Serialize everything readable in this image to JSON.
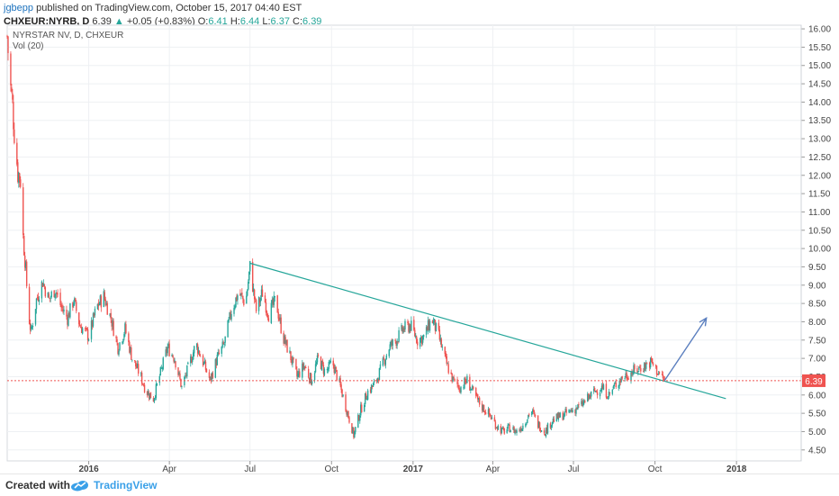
{
  "header": {
    "author": "jgbepp",
    "published_text": "published on TradingView.com, October 15, 2017 04:40 EST",
    "symbol": "CHXEUR:NYRB, D",
    "last": "6.39",
    "change": "+0.05 (+0.83%)",
    "o_label": "O:",
    "o_value": "6.41",
    "h_label": "H:",
    "h_value": "6.44",
    "l_label": "L:",
    "l_value": "6.37",
    "c_label": "C:",
    "c_value": "6.39"
  },
  "legend": {
    "series_name": "NYRSTAR NV, D, CHXEUR",
    "volume": "Vol (20)"
  },
  "footer": {
    "created_with": "Created with",
    "brand": "TradingView"
  },
  "colors": {
    "up": "#26a69a",
    "down": "#ef5350",
    "trendline": "#26a69a",
    "arrow": "#5b7fbf",
    "price_line": "#ef5350",
    "grid": "#eef0f3"
  },
  "chart_data": {
    "type": "candlestick",
    "y_axis": {
      "ticks": [
        "4.50",
        "5.00",
        "5.50",
        "6.00",
        "6.50",
        "7.00",
        "7.50",
        "8.00",
        "8.50",
        "9.00",
        "9.50",
        "10.00",
        "10.50",
        "11.00",
        "11.50",
        "12.00",
        "12.50",
        "13.00",
        "13.50",
        "14.00",
        "14.50",
        "15.00",
        "15.50",
        "16.00"
      ],
      "range": [
        4.2,
        16.1
      ]
    },
    "x_axis": {
      "ticks": [
        "2016",
        "Apr",
        "Jul",
        "Oct",
        "2017",
        "Apr",
        "Jul",
        "Oct",
        "2018"
      ],
      "range": [
        "2015-10-01",
        "2018-03-15"
      ]
    },
    "last_price_label": "6.39",
    "last_price": 6.39,
    "trendline": {
      "from": {
        "x": "2016-07-01",
        "y": 9.6
      },
      "to": {
        "x": "2017-12-20",
        "y": 5.9
      }
    },
    "projection_arrow": {
      "from": {
        "x": "2017-10-12",
        "y": 6.4
      },
      "to": {
        "x": "2017-11-28",
        "y": 8.1
      }
    },
    "price_path": [
      [
        "2015-10-01",
        15.8
      ],
      [
        "2015-10-04",
        14.6
      ],
      [
        "2015-10-07",
        13.9
      ],
      [
        "2015-10-10",
        12.9
      ],
      [
        "2015-10-13",
        12.1
      ],
      [
        "2015-10-16",
        11.9
      ],
      [
        "2015-10-19",
        10.3
      ],
      [
        "2015-10-22",
        9.4
      ],
      [
        "2015-10-25",
        8.2
      ],
      [
        "2015-10-28",
        7.7
      ],
      [
        "2015-11-03",
        8.6
      ],
      [
        "2015-11-10",
        9.1
      ],
      [
        "2015-11-17",
        8.6
      ],
      [
        "2015-11-24",
        8.9
      ],
      [
        "2015-12-01",
        8.4
      ],
      [
        "2015-12-08",
        8.1
      ],
      [
        "2015-12-15",
        8.6
      ],
      [
        "2015-12-22",
        7.9
      ],
      [
        "2016-01-01",
        7.6
      ],
      [
        "2016-01-10",
        8.4
      ],
      [
        "2016-01-18",
        8.7
      ],
      [
        "2016-01-26",
        8.1
      ],
      [
        "2016-02-03",
        7.3
      ],
      [
        "2016-02-11",
        7.8
      ],
      [
        "2016-02-19",
        7.0
      ],
      [
        "2016-02-27",
        6.6
      ],
      [
        "2016-03-06",
        6.1
      ],
      [
        "2016-03-14",
        5.9
      ],
      [
        "2016-03-22",
        6.6
      ],
      [
        "2016-03-30",
        7.3
      ],
      [
        "2016-04-07",
        7.0
      ],
      [
        "2016-04-15",
        6.2
      ],
      [
        "2016-04-23",
        6.8
      ],
      [
        "2016-05-01",
        7.4
      ],
      [
        "2016-05-09",
        6.9
      ],
      [
        "2016-05-17",
        6.4
      ],
      [
        "2016-05-25",
        7.0
      ],
      [
        "2016-06-02",
        7.4
      ],
      [
        "2016-06-10",
        8.3
      ],
      [
        "2016-06-18",
        8.8
      ],
      [
        "2016-06-26",
        8.5
      ],
      [
        "2016-07-01",
        9.5
      ],
      [
        "2016-07-08",
        8.3
      ],
      [
        "2016-07-15",
        8.8
      ],
      [
        "2016-07-22",
        8.2
      ],
      [
        "2016-07-30",
        8.6
      ],
      [
        "2016-08-07",
        7.6
      ],
      [
        "2016-08-15",
        7.1
      ],
      [
        "2016-08-23",
        6.5
      ],
      [
        "2016-08-31",
        6.8
      ],
      [
        "2016-09-08",
        6.4
      ],
      [
        "2016-09-16",
        7.0
      ],
      [
        "2016-09-24",
        6.6
      ],
      [
        "2016-10-02",
        6.9
      ],
      [
        "2016-10-10",
        6.3
      ],
      [
        "2016-10-18",
        5.6
      ],
      [
        "2016-10-26",
        4.9
      ],
      [
        "2016-11-03",
        5.6
      ],
      [
        "2016-11-11",
        6.1
      ],
      [
        "2016-11-19",
        6.3
      ],
      [
        "2016-11-27",
        6.8
      ],
      [
        "2016-12-05",
        7.3
      ],
      [
        "2016-12-13",
        7.5
      ],
      [
        "2016-12-21",
        7.8
      ],
      [
        "2016-12-29",
        7.9
      ],
      [
        "2017-01-06",
        7.5
      ],
      [
        "2017-01-14",
        7.6
      ],
      [
        "2017-01-22",
        8.1
      ],
      [
        "2017-01-30",
        7.6
      ],
      [
        "2017-02-07",
        6.9
      ],
      [
        "2017-02-15",
        6.4
      ],
      [
        "2017-02-23",
        6.2
      ],
      [
        "2017-03-03",
        6.4
      ],
      [
        "2017-03-11",
        6.0
      ],
      [
        "2017-03-19",
        5.7
      ],
      [
        "2017-03-27",
        5.5
      ],
      [
        "2017-04-04",
        5.2
      ],
      [
        "2017-04-12",
        5.0
      ],
      [
        "2017-04-20",
        5.1
      ],
      [
        "2017-04-28",
        5.0
      ],
      [
        "2017-05-06",
        5.2
      ],
      [
        "2017-05-14",
        5.6
      ],
      [
        "2017-05-22",
        5.2
      ],
      [
        "2017-05-30",
        5.0
      ],
      [
        "2017-06-07",
        5.3
      ],
      [
        "2017-06-15",
        5.4
      ],
      [
        "2017-06-23",
        5.5
      ],
      [
        "2017-07-01",
        5.6
      ],
      [
        "2017-07-09",
        5.7
      ],
      [
        "2017-07-17",
        5.9
      ],
      [
        "2017-07-25",
        6.1
      ],
      [
        "2017-08-02",
        6.2
      ],
      [
        "2017-08-10",
        6.0
      ],
      [
        "2017-08-18",
        6.3
      ],
      [
        "2017-08-26",
        6.5
      ],
      [
        "2017-09-03",
        6.6
      ],
      [
        "2017-09-11",
        6.7
      ],
      [
        "2017-09-19",
        6.8
      ],
      [
        "2017-09-27",
        6.9
      ],
      [
        "2017-10-05",
        6.6
      ],
      [
        "2017-10-12",
        6.39
      ]
    ]
  }
}
